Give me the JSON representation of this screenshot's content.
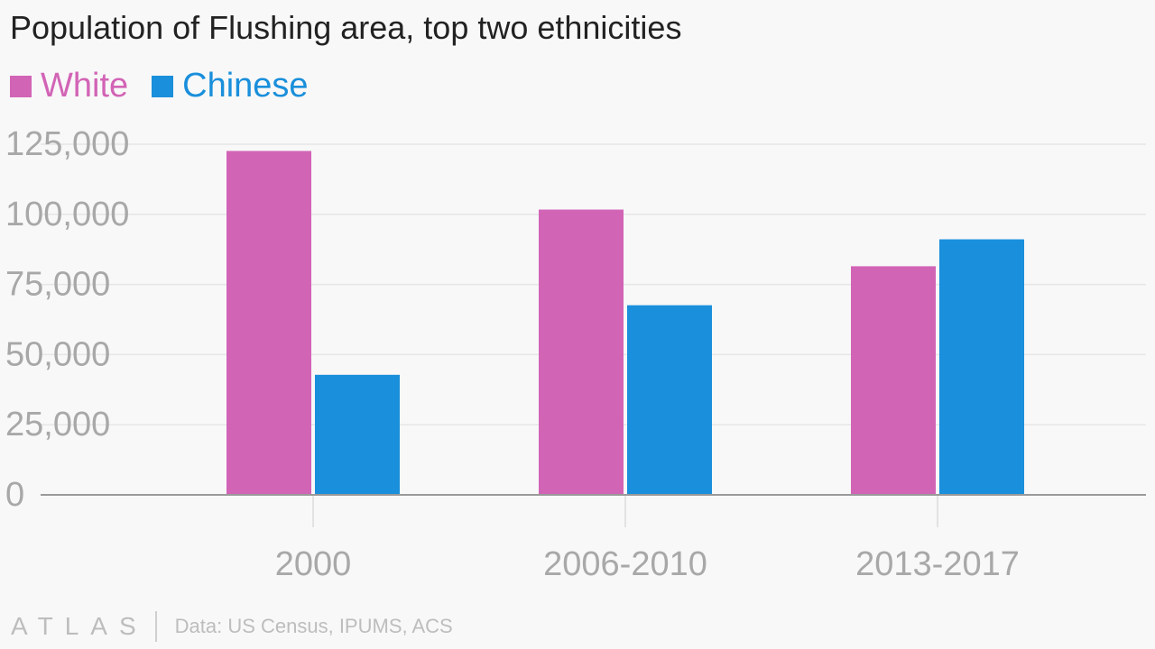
{
  "chart_data": {
    "type": "bar",
    "title": "Population of Flushing area, top two ethnicities",
    "categories": [
      "2000",
      "2006-2010",
      "2013-2017"
    ],
    "series": [
      {
        "name": "White",
        "color": "#d264b6",
        "values": [
          122600,
          101700,
          81500
        ]
      },
      {
        "name": "Chinese",
        "color": "#1a8fdb",
        "values": [
          42800,
          67600,
          91100
        ]
      }
    ],
    "ylim": [
      0,
      125000
    ],
    "yticks": [
      0,
      25000,
      50000,
      75000,
      100000,
      125000
    ],
    "ytick_labels": [
      "0",
      "25,000",
      "50,000",
      "75,000",
      "100,000",
      "125,000"
    ],
    "xlabel": "",
    "ylabel": "",
    "grid": true,
    "legend": "top-left"
  },
  "footer": {
    "logo": "ATLAS",
    "source": "Data: US Census, IPUMS, ACS"
  }
}
